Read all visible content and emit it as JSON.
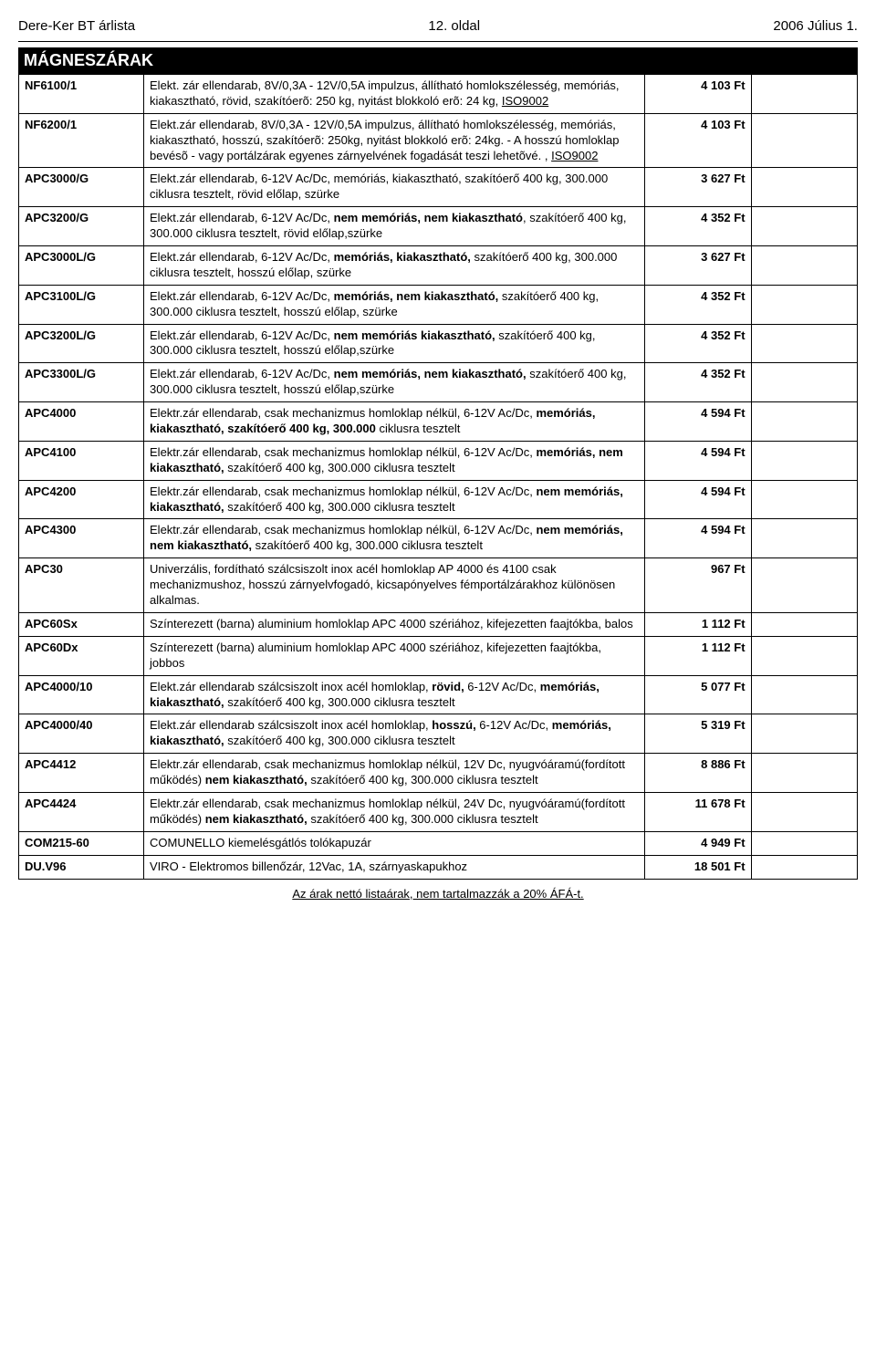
{
  "header": {
    "left": "Dere-Ker BT árlista",
    "center": "12. oldal",
    "right": "2006 Július 1."
  },
  "section_title": "MÁGNESZÁRAK",
  "rows": [
    {
      "code": "NF6100/1",
      "desc": "Elekt. zár ellendarab, 8V/0,3A - 12V/0,5A impulzus, állítható homlokszélesség, memóriás, kiakasztható, rövid, szakítóerõ: 250 kg, nyitást blokkoló erõ: 24 kg, <u>ISO9002</u>",
      "price": "4 103 Ft"
    },
    {
      "code": "NF6200/1",
      "desc": "Elekt.zár ellendarab, 8V/0,3A - 12V/0,5A impulzus, állítható homlokszélesség, memóriás, kiakasztható, hosszú, szakítóerõ: 250kg, nyitást blokkoló erõ: 24kg. - A hosszú homloklap  bevésõ - vagy portálzárak egyenes zárnyelvének fogadását teszi lehetõvé. , <u>ISO9002</u>",
      "price": "4 103 Ft"
    },
    {
      "code": "APC3000/G",
      "desc": "Elekt.zár ellendarab, 6-12V Ac/Dc, memóriás, kiakasztható, szakítóerő 400 kg, 300.000 ciklusra tesztelt,  rövid előlap, szürke",
      "price": "3 627 Ft"
    },
    {
      "code": "APC3200/G",
      "desc": "Elekt.zár ellendarab, 6-12V Ac/Dc, <b>nem memóriás, nem kiakasztható</b>, szakítóerő 400 kg, 300.000 ciklusra tesztelt, rövid előlap,szürke",
      "price": "4 352 Ft"
    },
    {
      "code": "APC3000L/G",
      "desc": "Elekt.zár ellendarab, 6-12V Ac/Dc, <b>memóriás, kiakasztható,</b> szakítóerő 400 kg, 300.000 ciklusra tesztelt, hosszú előlap, szürke",
      "price": "3 627 Ft"
    },
    {
      "code": "APC3100L/G",
      "desc": "Elekt.zár ellendarab, 6-12V Ac/Dc, <b>memóriás, nem kiakasztható,</b> szakítóerő 400 kg, 300.000 ciklusra tesztelt, hosszú előlap, szürke",
      "price": "4 352 Ft"
    },
    {
      "code": "APC3200L/G",
      "desc": "Elekt.zár ellendarab, 6-12V Ac/Dc, <b>nem memóriás</b> <b>kiakasztható,</b> szakítóerő 400 kg, 300.000 ciklusra tesztelt, hosszú előlap,szürke",
      "price": "4 352 Ft"
    },
    {
      "code": "APC3300L/G",
      "desc": "Elekt.zár ellendarab, 6-12V Ac/Dc, <b>nem memóriás, nem kiakasztható,</b> szakítóerő 400 kg, 300.000 ciklusra tesztelt, hosszú előlap,szürke",
      "price": "4 352 Ft"
    },
    {
      "code": "APC4000",
      "desc": "Elektr.zár ellendarab, csak mechanizmus homloklap nélkül, 6-12V Ac/Dc, <b>memóriás, kiakasztható, szakítóerő 400 kg, 300.000</b> ciklusra tesztelt",
      "price": "4 594 Ft"
    },
    {
      "code": "APC4100",
      "desc": "Elektr.zár ellendarab, csak mechanizmus homloklap nélkül, 6-12V Ac/Dc, <b>memóriás, nem kiakasztható,</b> szakítóerő 400 kg, 300.000 ciklusra tesztelt",
      "price": "4 594 Ft"
    },
    {
      "code": "APC4200",
      "desc": "Elektr.zár ellendarab, csak mechanizmus homloklap nélkül, 6-12V Ac/Dc, <b>nem memóriás, kiakasztható,</b> szakítóerő 400 kg, 300.000 ciklusra tesztelt",
      "price": "4 594 Ft"
    },
    {
      "code": "APC4300",
      "desc": "Elektr.zár ellendarab, csak mechanizmus homloklap nélkül, 6-12V Ac/Dc, <b>nem memóriás, nem kiakasztható,</b> szakítóerő 400 kg, 300.000 ciklusra tesztelt",
      "price": "4 594 Ft"
    },
    {
      "code": "APC30",
      "desc": "Univerzális, fordítható szálcsiszolt inox acél homloklap AP 4000 és 4100 csak mechanizmushoz, hosszú zárnyelvfogadó, kicsapónyelves fémportálzárakhoz különösen alkalmas.",
      "price": "967 Ft"
    },
    {
      "code": "APC60Sx",
      "desc": "Színterezett (barna) aluminium homloklap APC 4000 szériához, kifejezetten faajtókba, balos",
      "price": "1 112 Ft"
    },
    {
      "code": "APC60Dx",
      "desc": "Színterezett (barna) aluminium homloklap APC 4000 szériához, kifejezetten faajtókba, jobbos",
      "price": "1 112 Ft"
    },
    {
      "code": "APC4000/10",
      "desc": "Elekt.zár ellendarab szálcsiszolt inox acél homloklap, <b>rövid,</b>  6-12V Ac/Dc, <b>memóriás, kiakasztható,</b> szakítóerő 400 kg, 300.000 ciklusra tesztelt",
      "price": "5 077 Ft"
    },
    {
      "code": "APC4000/40",
      "desc": "Elekt.zár ellendarab szálcsiszolt inox acél homloklap, <b>hosszú,</b> 6-12V Ac/Dc, <b>memóriás, kiakasztható,</b> szakítóerő 400 kg, 300.000 ciklusra tesztelt",
      "price": "5 319 Ft"
    },
    {
      "code": "APC4412",
      "desc": "Elektr.zár ellendarab, csak mechanizmus homloklap nélkül, 12V Dc, nyugvóáramú(fordított működés) <b>nem  kiakasztható,</b> szakítóerő 400 kg, 300.000 ciklusra tesztelt",
      "price": "8 886 Ft"
    },
    {
      "code": "APC4424",
      "desc": "Elektr.zár ellendarab, csak mechanizmus homloklap nélkül, 24V Dc, nyugvóáramú(fordított működés) <b>nem  kiakasztható,</b> szakítóerő 400 kg, 300.000 ciklusra tesztelt",
      "price": "11 678 Ft"
    },
    {
      "code": "COM215-60",
      "desc": "COMUNELLO kiemelésgátlós tolókapuzár",
      "price": "4 949 Ft"
    },
    {
      "code": "DU.V96",
      "desc": "VIRO - Elektromos billenőzár, 12Vac, 1A, szárnyaskapukhoz",
      "price": "18 501 Ft"
    }
  ],
  "footer": "Az árak nettó listaárak, nem tartalmazzák a 20% ÁFÁ-t."
}
